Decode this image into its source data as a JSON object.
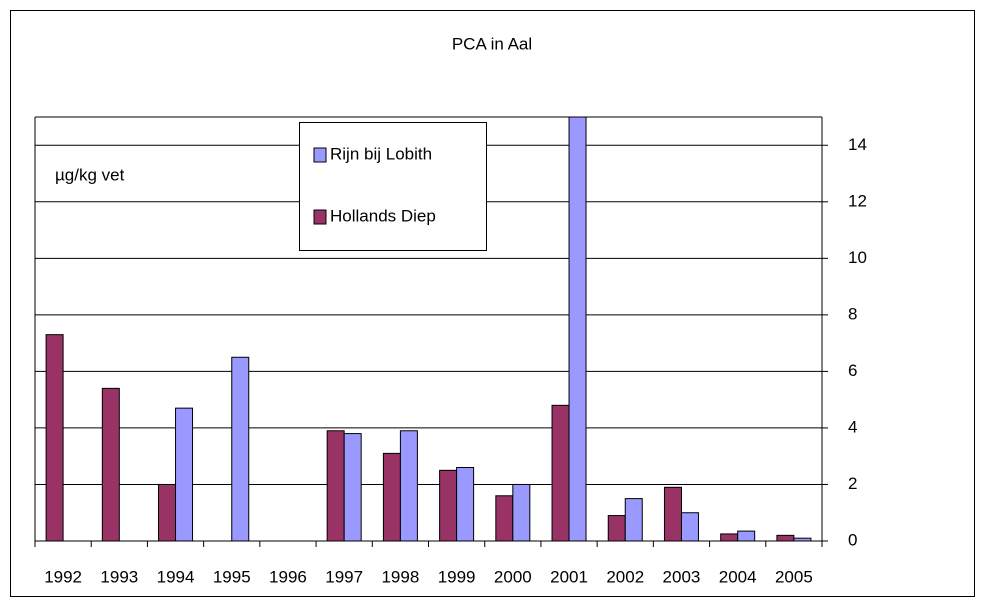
{
  "chart_data": {
    "type": "bar",
    "title": "PCA in Aal",
    "annotation": "µg/kg vet",
    "categories": [
      "1992",
      "1993",
      "1994",
      "1995",
      "1996",
      "1997",
      "1998",
      "1999",
      "2000",
      "2001",
      "2002",
      "2003",
      "2004",
      "2005"
    ],
    "series": [
      {
        "name": "Hollands Diep",
        "color": "#993366",
        "values": [
          7.3,
          5.4,
          2.0,
          null,
          null,
          3.9,
          3.1,
          2.5,
          1.6,
          4.8,
          0.9,
          1.9,
          0.25,
          0.2
        ]
      },
      {
        "name": "Rijn bij Lobith",
        "color": "#9999ff",
        "values": [
          null,
          null,
          4.7,
          6.5,
          null,
          3.8,
          3.9,
          2.6,
          2.0,
          15,
          1.5,
          1.0,
          0.35,
          0.1
        ]
      }
    ],
    "ylim": [
      0,
      15
    ],
    "yticks": [
      0,
      2,
      4,
      6,
      8,
      10,
      12,
      14
    ],
    "grid": true,
    "y_axis_side": "right"
  }
}
